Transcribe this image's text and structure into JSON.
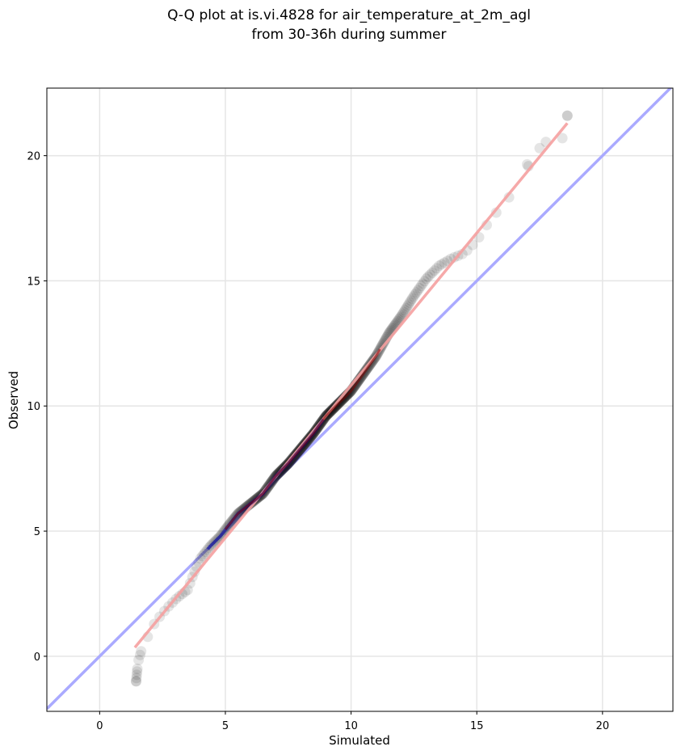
{
  "chart_data": {
    "type": "scatter",
    "title": [
      "Q-Q plot at is.vi.4828 for air_temperature_at_2m_agl",
      "from 30-36h during summer"
    ],
    "xlabel": "Simulated",
    "ylabel": "Observed",
    "xlim": [
      -2.1,
      22.8
    ],
    "ylim": [
      -2.2,
      22.7
    ],
    "x_ticks": [
      0,
      5,
      10,
      15,
      20
    ],
    "y_ticks": [
      0,
      5,
      10,
      15,
      20
    ],
    "x_tick_labels": [
      "0",
      "5",
      "10",
      "15",
      "20"
    ],
    "y_tick_labels": [
      "0",
      "5",
      "10",
      "15",
      "20"
    ],
    "grid": true,
    "reference_line": {
      "description": "1:1 line",
      "points": [
        [
          -2.1,
          -2.1
        ],
        [
          22.8,
          22.8
        ]
      ],
      "color": "#aaaaff"
    },
    "fit_line": {
      "points": [
        [
          1.4,
          0.35
        ],
        [
          18.6,
          21.3
        ]
      ],
      "color": "#f5a0a0"
    },
    "curve_anchors": [
      [
        1.45,
        -1.0
      ],
      [
        1.5,
        -0.5
      ],
      [
        1.55,
        -0.15
      ],
      [
        1.65,
        0.2
      ],
      [
        1.9,
        0.75
      ],
      [
        2.1,
        1.2
      ],
      [
        2.4,
        1.6
      ],
      [
        2.7,
        1.95
      ],
      [
        3.1,
        2.35
      ],
      [
        3.5,
        2.65
      ],
      [
        3.7,
        3.2
      ],
      [
        4.0,
        3.9
      ],
      [
        4.4,
        4.4
      ],
      [
        4.8,
        4.8
      ],
      [
        5.1,
        5.2
      ],
      [
        5.5,
        5.7
      ],
      [
        6.0,
        6.1
      ],
      [
        6.5,
        6.5
      ],
      [
        7.0,
        7.2
      ],
      [
        7.5,
        7.7
      ],
      [
        8.0,
        8.3
      ],
      [
        8.5,
        8.9
      ],
      [
        9.0,
        9.6
      ],
      [
        9.5,
        10.1
      ],
      [
        10.0,
        10.6
      ],
      [
        10.5,
        11.3
      ],
      [
        11.0,
        12.0
      ],
      [
        11.5,
        12.9
      ],
      [
        12.0,
        13.6
      ],
      [
        12.5,
        14.4
      ],
      [
        13.0,
        15.1
      ],
      [
        13.5,
        15.6
      ],
      [
        14.0,
        15.9
      ],
      [
        14.5,
        16.1
      ],
      [
        15.0,
        16.6
      ],
      [
        15.5,
        17.4
      ],
      [
        16.0,
        18.0
      ],
      [
        16.5,
        18.6
      ],
      [
        17.0,
        19.5
      ],
      [
        17.5,
        20.3
      ],
      [
        18.0,
        20.6
      ],
      [
        18.4,
        20.7
      ],
      [
        18.6,
        21.6
      ]
    ],
    "point_count": 450,
    "colors": {
      "points": "#000000",
      "reference_line": "#aaaaff",
      "fit_line": "#f5a0a0",
      "central_red": "#7a0000",
      "central_blue": "#0000aa",
      "grid": "#e5e5e5"
    }
  }
}
